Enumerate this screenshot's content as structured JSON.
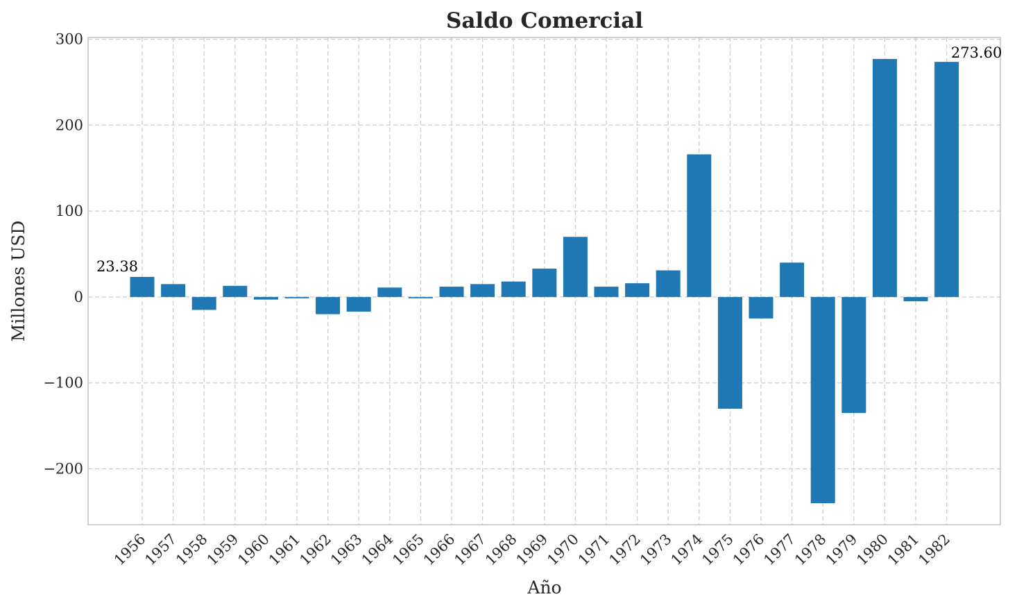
{
  "chart_data": {
    "type": "bar",
    "title": "Saldo Comercial",
    "xlabel": "Año",
    "ylabel": "Millones USD",
    "categories": [
      "1956",
      "1957",
      "1958",
      "1959",
      "1960",
      "1961",
      "1962",
      "1963",
      "1964",
      "1965",
      "1966",
      "1967",
      "1968",
      "1969",
      "1970",
      "1971",
      "1972",
      "1973",
      "1974",
      "1975",
      "1976",
      "1977",
      "1978",
      "1979",
      "1980",
      "1981",
      "1982"
    ],
    "values": [
      23.38,
      15,
      -15,
      13,
      -3,
      -1.5,
      -20,
      -17,
      11,
      -1.5,
      12,
      15,
      18,
      33,
      70,
      12,
      16,
      31,
      166,
      -130,
      -25,
      40,
      -240,
      -135,
      277,
      -5,
      273.6
    ],
    "ylim": [
      -265,
      302
    ],
    "yticks": [
      -200,
      -100,
      0,
      100,
      200,
      300
    ],
    "ytick_labels": [
      "−200",
      "−100",
      "0",
      "100",
      "200",
      "300"
    ],
    "grid": true,
    "bar_color": "#1f77b4",
    "annotations": [
      {
        "category": "1956",
        "text": "23.38"
      },
      {
        "category": "1982",
        "text": "273.60"
      }
    ]
  }
}
